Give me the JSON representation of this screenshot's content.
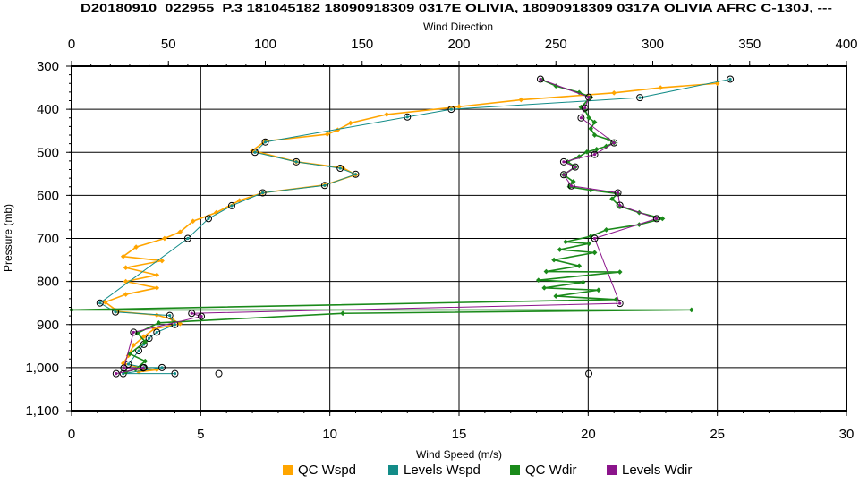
{
  "chart_data": {
    "type": "line",
    "title": "D20180910_022955_P.3 181045182 18090918309 0317E OLIVIA, 18090918309 0317A OLIVIA AFRC C-130J, ---",
    "xlabel": "Wind Speed (m/s)",
    "x2label": "Wind Direction",
    "ylabel": "Pressure (mb)",
    "xlim": [
      0,
      30
    ],
    "x2lim": [
      0,
      400
    ],
    "ylim": [
      300,
      1100
    ],
    "y_inverted": true,
    "x_ticks": [
      "0",
      "5",
      "10",
      "15",
      "20",
      "25",
      "30"
    ],
    "x2_ticks": [
      "0",
      "50",
      "100",
      "150",
      "200",
      "250",
      "300",
      "350",
      "400"
    ],
    "y_ticks": [
      "300",
      "400",
      "500",
      "600",
      "700",
      "800",
      "900",
      "1,000",
      "1,100"
    ],
    "grid": true,
    "legend_position": "bottom",
    "series": [
      {
        "name": "QC Wspd",
        "axis": "bottom",
        "color": "#FFA500",
        "points": [
          [
            25.0,
            340
          ],
          [
            22.8,
            350
          ],
          [
            21.0,
            362
          ],
          [
            17.4,
            378
          ],
          [
            15.0,
            394
          ],
          [
            12.2,
            412
          ],
          [
            10.8,
            432
          ],
          [
            10.3,
            448
          ],
          [
            9.9,
            458
          ],
          [
            7.5,
            474
          ],
          [
            7.0,
            496
          ],
          [
            8.7,
            522
          ],
          [
            10.5,
            536
          ],
          [
            11.0,
            552
          ],
          [
            9.8,
            576
          ],
          [
            7.4,
            594
          ],
          [
            6.5,
            612
          ],
          [
            5.6,
            640
          ],
          [
            4.7,
            660
          ],
          [
            4.2,
            685
          ],
          [
            3.6,
            700
          ],
          [
            2.5,
            720
          ],
          [
            2.0,
            742
          ],
          [
            3.5,
            752
          ],
          [
            2.1,
            768
          ],
          [
            3.3,
            785
          ],
          [
            2.1,
            800
          ],
          [
            3.3,
            815
          ],
          [
            2.1,
            830
          ],
          [
            1.3,
            848
          ],
          [
            1.8,
            870
          ],
          [
            3.3,
            878
          ],
          [
            3.9,
            888
          ],
          [
            4.2,
            898
          ],
          [
            3.2,
            910
          ],
          [
            2.8,
            928
          ],
          [
            2.4,
            948
          ],
          [
            2.2,
            972
          ],
          [
            2.0,
            990
          ],
          [
            2.8,
            1002
          ],
          [
            3.3,
            1005
          ],
          [
            2.6,
            1010
          ]
        ]
      },
      {
        "name": "Levels Wspd",
        "axis": "bottom",
        "color": "#138C88",
        "points": [
          [
            25.5,
            330
          ],
          [
            22.0,
            373
          ],
          [
            14.7,
            400
          ],
          [
            13.0,
            418
          ],
          [
            7.5,
            476
          ],
          [
            7.1,
            500
          ],
          [
            8.7,
            522
          ],
          [
            10.4,
            537
          ],
          [
            11.0,
            551
          ],
          [
            9.8,
            577
          ],
          [
            7.4,
            594
          ],
          [
            6.2,
            624
          ],
          [
            5.3,
            654
          ],
          [
            4.5,
            700
          ],
          [
            1.1,
            850
          ],
          [
            1.7,
            871
          ],
          [
            3.8,
            879
          ],
          [
            4.0,
            900
          ],
          [
            3.3,
            918
          ],
          [
            3.0,
            932
          ],
          [
            2.8,
            946
          ],
          [
            2.6,
            961
          ],
          [
            2.2,
            992
          ],
          [
            2.8,
            1000
          ],
          [
            3.5,
            1000
          ],
          [
            2.0,
            1014
          ],
          [
            4.0,
            1014
          ]
        ]
      },
      {
        "name": "QC Wdir",
        "axis": "top",
        "color": "#1A8A1A",
        "points": [
          [
            243,
            332
          ],
          [
            250,
            346
          ],
          [
            262,
            361
          ],
          [
            268,
            372
          ],
          [
            263,
            395
          ],
          [
            265,
            402
          ],
          [
            267,
            420
          ],
          [
            270,
            430
          ],
          [
            268,
            445
          ],
          [
            270,
            460
          ],
          [
            277,
            470
          ],
          [
            280,
            478
          ],
          [
            276,
            486
          ],
          [
            271,
            493
          ],
          [
            266,
            499
          ],
          [
            262,
            510
          ],
          [
            256,
            522
          ],
          [
            260,
            534
          ],
          [
            254,
            552
          ],
          [
            259,
            568
          ],
          [
            257,
            580
          ],
          [
            268,
            588
          ],
          [
            282,
            596
          ],
          [
            279,
            608
          ],
          [
            283,
            625
          ],
          [
            293,
            640
          ],
          [
            305,
            654
          ],
          [
            293,
            668
          ],
          [
            276,
            680
          ],
          [
            268,
            695
          ],
          [
            255,
            708
          ],
          [
            267,
            712
          ],
          [
            252,
            726
          ],
          [
            270,
            733
          ],
          [
            249,
            750
          ],
          [
            262,
            764
          ],
          [
            245,
            777
          ],
          [
            283,
            778
          ],
          [
            241,
            797
          ],
          [
            264,
            802
          ],
          [
            244,
            815
          ],
          [
            272,
            820
          ],
          [
            250,
            834
          ],
          [
            281,
            842
          ],
          [
            0,
            866
          ],
          [
            320,
            866
          ],
          [
            140,
            874
          ],
          [
            45,
            896
          ],
          [
            34,
            920
          ],
          [
            38,
            940
          ],
          [
            30,
            968
          ],
          [
            38,
            985
          ],
          [
            33,
            1004
          ],
          [
            28,
            1010
          ]
        ]
      },
      {
        "name": "Levels Wdir",
        "axis": "top",
        "color": "#8B148B",
        "points": [
          [
            242,
            330
          ],
          [
            267,
            372
          ],
          [
            265,
            397
          ],
          [
            263,
            420
          ],
          [
            280,
            478
          ],
          [
            270,
            505
          ],
          [
            254,
            522
          ],
          [
            260,
            534
          ],
          [
            254,
            552
          ],
          [
            258,
            578
          ],
          [
            282,
            594
          ],
          [
            283,
            623
          ],
          [
            302,
            654
          ],
          [
            270,
            700
          ],
          [
            283,
            851
          ],
          [
            62,
            874
          ],
          [
            67,
            881
          ],
          [
            32,
            918
          ],
          [
            27,
            1001
          ],
          [
            37,
            1001
          ],
          [
            23,
            1014
          ]
        ]
      }
    ],
    "extra_markers": [
      {
        "axis": "bottom",
        "x": 5.7,
        "y": 1014
      },
      {
        "axis": "top",
        "x": 267,
        "y": 1014
      }
    ]
  }
}
